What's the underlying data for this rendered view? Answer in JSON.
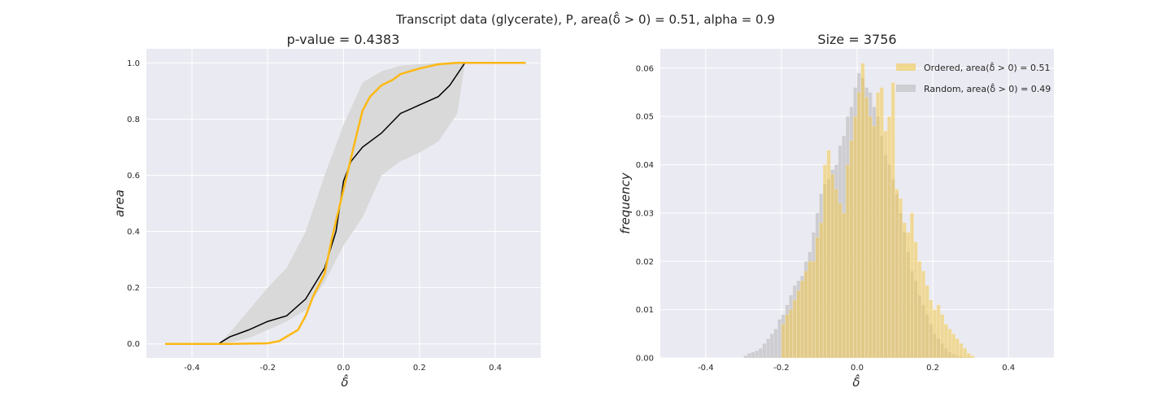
{
  "figure": {
    "suptitle": "Transcript data (glycerate), P, area(δ̂ > 0) = 0.51, alpha = 0.9"
  },
  "colors": {
    "background": "#EAEAF2",
    "grid": "#FFFFFF",
    "ordered": "#FDB813",
    "ordered_fill": "#F2C94C",
    "random_line": "#000000",
    "band": "#D9D9D9",
    "random_bar": "#C8C8CC"
  },
  "chart_data": [
    {
      "type": "line",
      "title": "p-value = 0.4383",
      "xlabel": "δ̂",
      "ylabel": "area",
      "xlim": [
        -0.52,
        0.52
      ],
      "ylim": [
        -0.05,
        1.05
      ],
      "xticks": [
        "-0.4",
        "-0.2",
        "0.0",
        "0.2",
        "0.4"
      ],
      "yticks": [
        "0.0",
        "0.2",
        "0.4",
        "0.6",
        "0.8",
        "1.0"
      ],
      "grid": true,
      "series": [
        {
          "role": "band",
          "x": [
            -0.47,
            -0.33,
            -0.3,
            -0.25,
            -0.2,
            -0.15,
            -0.1,
            -0.05,
            0.0,
            0.05,
            0.1,
            0.15,
            0.2,
            0.25,
            0.3,
            0.32,
            0.48
          ],
          "lower": [
            0,
            0,
            0.005,
            0.02,
            0.05,
            0.08,
            0.12,
            0.22,
            0.35,
            0.45,
            0.6,
            0.65,
            0.68,
            0.72,
            0.82,
            1.0,
            1.0
          ],
          "upper": [
            0,
            0,
            0.04,
            0.12,
            0.2,
            0.27,
            0.4,
            0.6,
            0.78,
            0.93,
            0.97,
            0.99,
            0.995,
            1.0,
            1.0,
            1.0,
            1.0
          ]
        },
        {
          "role": "random",
          "x": [
            -0.47,
            -0.33,
            -0.3,
            -0.25,
            -0.2,
            -0.15,
            -0.1,
            -0.05,
            -0.02,
            0.0,
            0.02,
            0.05,
            0.1,
            0.15,
            0.2,
            0.25,
            0.28,
            0.3,
            0.32,
            0.48
          ],
          "y": [
            0,
            0,
            0.025,
            0.05,
            0.08,
            0.1,
            0.16,
            0.27,
            0.4,
            0.58,
            0.65,
            0.7,
            0.75,
            0.82,
            0.85,
            0.88,
            0.92,
            0.96,
            1.0,
            1.0
          ]
        },
        {
          "role": "ordered",
          "x": [
            -0.47,
            -0.3,
            -0.2,
            -0.17,
            -0.12,
            -0.1,
            -0.08,
            -0.05,
            -0.03,
            0.0,
            0.03,
            0.05,
            0.07,
            0.1,
            0.13,
            0.15,
            0.2,
            0.25,
            0.3,
            0.32,
            0.48
          ],
          "y": [
            0,
            0,
            0.002,
            0.01,
            0.05,
            0.1,
            0.17,
            0.25,
            0.38,
            0.55,
            0.72,
            0.83,
            0.88,
            0.92,
            0.94,
            0.96,
            0.98,
            0.995,
            1.0,
            1.0,
            1.0
          ]
        }
      ]
    },
    {
      "type": "bar",
      "title": "Size = 3756",
      "xlabel": "δ̂",
      "ylabel": "frequency",
      "xlim": [
        -0.52,
        0.52
      ],
      "ylim": [
        0,
        0.064
      ],
      "xticks": [
        "-0.4",
        "-0.2",
        "0.0",
        "0.2",
        "0.4"
      ],
      "yticks": [
        "0.00",
        "0.01",
        "0.02",
        "0.03",
        "0.04",
        "0.05",
        "0.06"
      ],
      "grid": true,
      "legend_position": "top-right",
      "series": [
        {
          "name": "Random, area(δ̂ > 0) = 0.49",
          "role": "random",
          "x_start": -0.3,
          "bin_width": 0.01,
          "values": [
            0.0005,
            0.001,
            0.0012,
            0.0015,
            0.002,
            0.003,
            0.004,
            0.005,
            0.006,
            0.008,
            0.009,
            0.011,
            0.013,
            0.015,
            0.016,
            0.017,
            0.02,
            0.022,
            0.026,
            0.03,
            0.034,
            0.036,
            0.037,
            0.039,
            0.04,
            0.044,
            0.046,
            0.05,
            0.052,
            0.056,
            0.059,
            0.058,
            0.056,
            0.055,
            0.052,
            0.05,
            0.046,
            0.042,
            0.04,
            0.037,
            0.034,
            0.03,
            0.026,
            0.022,
            0.018,
            0.016,
            0.013,
            0.011,
            0.009,
            0.007,
            0.005,
            0.004,
            0.003,
            0.002,
            0.0012,
            0.0008,
            0.0005,
            0.0003,
            0.0002,
            0.0002
          ]
        },
        {
          "name": "Ordered, area(δ̂ > 0) = 0.51",
          "role": "ordered",
          "x_start": -0.2,
          "bin_width": 0.01,
          "values": [
            0.007,
            0.009,
            0.01,
            0.012,
            0.014,
            0.016,
            0.018,
            0.02,
            0.02,
            0.025,
            0.028,
            0.04,
            0.043,
            0.038,
            0.035,
            0.032,
            0.03,
            0.04,
            0.045,
            0.05,
            0.055,
            0.061,
            0.054,
            0.05,
            0.048,
            0.055,
            0.056,
            0.047,
            0.05,
            0.057,
            0.035,
            0.033,
            0.028,
            0.026,
            0.03,
            0.024,
            0.02,
            0.018,
            0.015,
            0.012,
            0.01,
            0.011,
            0.009,
            0.007,
            0.006,
            0.005,
            0.004,
            0.003,
            0.002,
            0.001,
            0.0005
          ]
        }
      ]
    }
  ]
}
